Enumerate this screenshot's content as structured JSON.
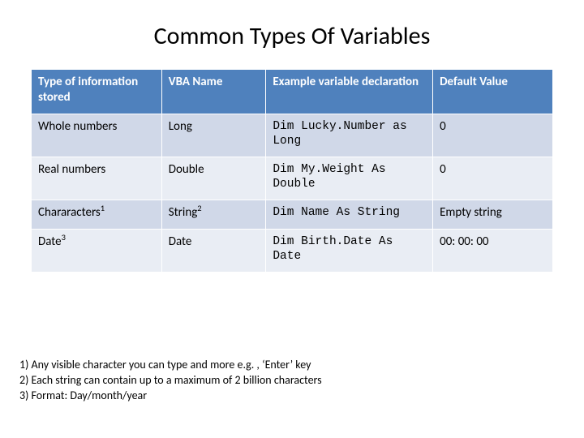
{
  "title": "Common Types Of Variables",
  "table": {
    "columns": [
      "Type of information stored",
      "VBA Name",
      "Example variable declaration",
      "Default Value"
    ],
    "rows": [
      {
        "type": "Whole numbers",
        "type_sup": "",
        "vba": "Long",
        "vba_sup": "",
        "example": "Dim Lucky.Number as Long",
        "default": "0"
      },
      {
        "type": "Real numbers",
        "type_sup": "",
        "vba": "Double",
        "vba_sup": "",
        "example": "Dim My.Weight As Double",
        "default": "0"
      },
      {
        "type": "Chararacters",
        "type_sup": "1",
        "vba": "String",
        "vba_sup": "2",
        "example": "Dim Name As String",
        "default": "Empty string"
      },
      {
        "type": "Date",
        "type_sup": "3",
        "vba": "Date",
        "vba_sup": "",
        "example": "Dim Birth.Date As Date",
        "default": "00: 00: 00"
      }
    ]
  },
  "footnotes": [
    "1) Any visible character you can type and more e.g. , ‘Enter’ key",
    "2) Each string can contain up to a maximum of 2 billion characters",
    "3) Format: Day/month/year"
  ],
  "colors": {
    "header_bg": "#4f81bd",
    "band_a": "#d0d8e8",
    "band_b": "#e9edf4",
    "border": "#ffffff",
    "text": "#000000",
    "header_text": "#ffffff",
    "background": "#ffffff"
  },
  "typography": {
    "title_fontsize": 30,
    "cell_fontsize": 15,
    "code_font": "Consolas",
    "footnote_fontsize": 14
  },
  "column_widths_pct": [
    25,
    20,
    32,
    23
  ]
}
